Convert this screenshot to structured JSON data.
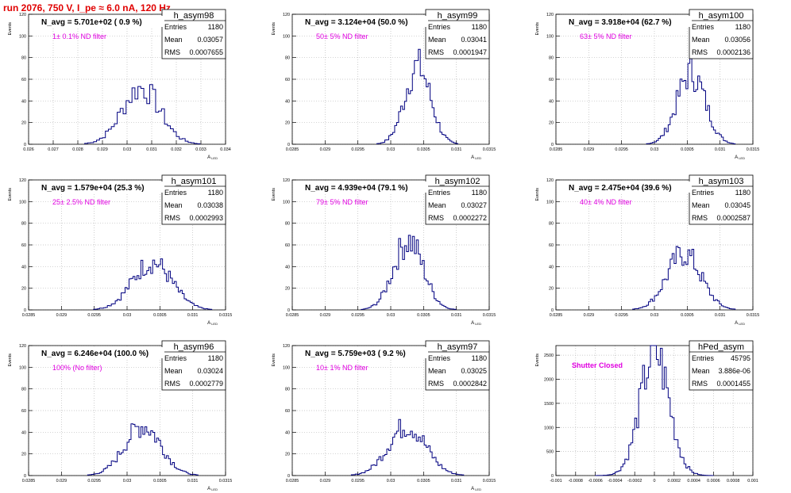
{
  "header": {
    "title": "run 2076,   750 V, I_pe ≈ 6.0 nA, 120 Hz"
  },
  "colors": {
    "title": "#e00000",
    "annotation": "#e000e0",
    "histogram": "#000080",
    "grid": "#bbbbbb"
  },
  "stats_labels": {
    "entries": "Entries",
    "mean": "Mean",
    "rms": "RMS"
  },
  "chart_data": [
    {
      "type": "histogram",
      "name": "h_asym98",
      "navg": "N_avg = 5.701e+02 ( 0.9 %)",
      "annotation": "1± 0.1% ND filter",
      "entries": "1180",
      "mean": "0.03057",
      "rms": "0.0007655",
      "xlabel": "A_LED",
      "ylabel": "Events",
      "xlim": [
        0.026,
        0.034
      ],
      "ylim": [
        0,
        120
      ],
      "xticks": [
        "0.026",
        "0.027",
        "0.028",
        "0.029",
        "0.03",
        "0.031",
        "0.032",
        "0.033",
        "0.034"
      ],
      "xtick_values": [
        0.026,
        0.027,
        0.028,
        0.029,
        0.03,
        0.031,
        0.032,
        0.033,
        0.034
      ],
      "yticks": [
        0,
        20,
        40,
        60,
        80,
        100,
        120
      ],
      "mean_value": 0.03057,
      "sigma": 0.00077,
      "amp": 52,
      "bin": 0.00012
    },
    {
      "type": "histogram",
      "name": "h_asym99",
      "navg": "N_avg = 3.124e+04 (50.0 %)",
      "annotation": "50± 5% ND filter",
      "entries": "1180",
      "mean": "0.03041",
      "rms": "0.0001947",
      "xlabel": "A_LED",
      "ylabel": "Events",
      "xlim": [
        0.0285,
        0.0315
      ],
      "ylim": [
        0,
        120
      ],
      "xticks": [
        "0.0285",
        "0.029",
        "0.0295",
        "0.03",
        "0.0305",
        "0.031",
        "0.0315"
      ],
      "xtick_values": [
        0.0285,
        0.029,
        0.0295,
        0.03,
        0.0305,
        0.031,
        0.0315
      ],
      "yticks": [
        0,
        20,
        40,
        60,
        80,
        100,
        120
      ],
      "mean_value": 0.03041,
      "sigma": 0.000195,
      "amp": 72,
      "bin": 3e-05
    },
    {
      "type": "histogram",
      "name": "h_asym100",
      "navg": "N_avg = 3.918e+04 (62.7 %)",
      "annotation": "63± 5% ND filter",
      "entries": "1180",
      "mean": "0.03056",
      "rms": "0.0002136",
      "xlabel": "A_LED",
      "ylabel": "Events",
      "xlim": [
        0.0285,
        0.0315
      ],
      "ylim": [
        0,
        120
      ],
      "xticks": [
        "0.0285",
        "0.029",
        "0.0295",
        "0.03",
        "0.0305",
        "0.031",
        "0.0315"
      ],
      "xtick_values": [
        0.0285,
        0.029,
        0.0295,
        0.03,
        0.0305,
        0.031,
        0.0315
      ],
      "yticks": [
        0,
        20,
        40,
        60,
        80,
        100,
        120
      ],
      "mean_value": 0.03056,
      "sigma": 0.000214,
      "amp": 66,
      "bin": 3e-05
    },
    {
      "type": "histogram",
      "name": "h_asym101",
      "navg": "N_avg = 1.579e+04 (25.3 %)",
      "annotation": "25± 2.5% ND filter",
      "entries": "1180",
      "mean": "0.03038",
      "rms": "0.0002993",
      "xlabel": "A_LED",
      "ylabel": "Events",
      "xlim": [
        0.0285,
        0.0315
      ],
      "ylim": [
        0,
        120
      ],
      "xticks": [
        "0.0285",
        "0.029",
        "0.0295",
        "0.03",
        "0.0305",
        "0.031",
        "0.0315"
      ],
      "xtick_values": [
        0.0285,
        0.029,
        0.0295,
        0.03,
        0.0305,
        0.031,
        0.0315
      ],
      "yticks": [
        0,
        20,
        40,
        60,
        80,
        100,
        120
      ],
      "mean_value": 0.03038,
      "sigma": 0.0003,
      "amp": 44,
      "bin": 3e-05
    },
    {
      "type": "histogram",
      "name": "h_asym102",
      "navg": "N_avg = 4.939e+04 (79.1 %)",
      "annotation": "79± 5% ND filter",
      "entries": "1180",
      "mean": "0.03027",
      "rms": "0.0002272",
      "xlabel": "A_LED",
      "ylabel": "Events",
      "xlim": [
        0.0285,
        0.0315
      ],
      "ylim": [
        0,
        120
      ],
      "xticks": [
        "0.0285",
        "0.029",
        "0.0295",
        "0.03",
        "0.0305",
        "0.031",
        "0.0315"
      ],
      "xtick_values": [
        0.0285,
        0.029,
        0.0295,
        0.03,
        0.0305,
        0.031,
        0.0315
      ],
      "yticks": [
        0,
        20,
        40,
        60,
        80,
        100,
        120
      ],
      "mean_value": 0.03027,
      "sigma": 0.000227,
      "amp": 64,
      "bin": 3e-05
    },
    {
      "type": "histogram",
      "name": "h_asym103",
      "navg": "N_avg = 2.475e+04 (39.6 %)",
      "annotation": "40± 4% ND filter",
      "entries": "1180",
      "mean": "0.03045",
      "rms": "0.0002587",
      "xlabel": "A_LED",
      "ylabel": "Events",
      "xlim": [
        0.0285,
        0.0315
      ],
      "ylim": [
        0,
        120
      ],
      "xticks": [
        "0.0285",
        "0.029",
        "0.0295",
        "0.03",
        "0.0305",
        "0.031",
        "0.0315"
      ],
      "xtick_values": [
        0.0285,
        0.029,
        0.0295,
        0.03,
        0.0305,
        0.031,
        0.0315
      ],
      "yticks": [
        0,
        20,
        40,
        60,
        80,
        100,
        120
      ],
      "mean_value": 0.03045,
      "sigma": 0.00026,
      "amp": 52,
      "bin": 3e-05
    },
    {
      "type": "histogram",
      "name": "h_asym96",
      "navg": "N_avg = 6.246e+04 (100.0 %)",
      "annotation": "100% (No filter)",
      "entries": "1180",
      "mean": "0.03024",
      "rms": "0.0002779",
      "xlabel": "A_LED",
      "ylabel": "Events",
      "xlim": [
        0.0285,
        0.0315
      ],
      "ylim": [
        0,
        120
      ],
      "xticks": [
        "0.0285",
        "0.029",
        "0.0295",
        "0.03",
        "0.0305",
        "0.031",
        "0.0315"
      ],
      "xtick_values": [
        0.0285,
        0.029,
        0.0295,
        0.03,
        0.0305,
        0.031,
        0.0315
      ],
      "yticks": [
        0,
        20,
        40,
        60,
        80,
        100,
        120
      ],
      "mean_value": 0.03024,
      "sigma": 0.000278,
      "amp": 46,
      "bin": 3e-05
    },
    {
      "type": "histogram",
      "name": "h_asym97",
      "navg": "N_avg = 5.759e+03 ( 9.2 %)",
      "annotation": "10± 1% ND filter",
      "entries": "1180",
      "mean": "0.03025",
      "rms": "0.0002842",
      "xlabel": "A_LED",
      "ylabel": "Events",
      "xlim": [
        0.0285,
        0.0315
      ],
      "ylim": [
        0,
        120
      ],
      "xticks": [
        "0.0285",
        "0.029",
        "0.0295",
        "0.03",
        "0.0305",
        "0.031",
        "0.0315"
      ],
      "xtick_values": [
        0.0285,
        0.029,
        0.0295,
        0.03,
        0.0305,
        0.031,
        0.0315
      ],
      "yticks": [
        0,
        20,
        40,
        60,
        80,
        100,
        120
      ],
      "mean_value": 0.03025,
      "sigma": 0.000284,
      "amp": 46,
      "bin": 3e-05
    },
    {
      "type": "histogram",
      "name": "hPed_asym",
      "navg": "",
      "annotation": "Shutter Closed",
      "entries": "45795",
      "mean": "3.886e-06",
      "rms": "0.0001455",
      "xlabel": "",
      "ylabel": "Events",
      "xlim": [
        -0.001,
        0.001
      ],
      "ylim": [
        0,
        2700
      ],
      "xticks": [
        "-0.001",
        "-0.0008",
        "-0.0006",
        "-0.0004",
        "-0.0002",
        "0",
        "0.0002",
        "0.0004",
        "0.0006",
        "0.0008",
        "0.001"
      ],
      "xtick_values": [
        -0.001,
        -0.0008,
        -0.0006,
        -0.0004,
        -0.0002,
        0,
        0.0002,
        0.0004,
        0.0006,
        0.0008,
        0.001
      ],
      "yticks": [
        0,
        500,
        1000,
        1500,
        2000,
        2500
      ],
      "mean_value": 3.9e-06,
      "sigma": 0.0001455,
      "amp": 2560,
      "bin": 2e-05
    }
  ]
}
